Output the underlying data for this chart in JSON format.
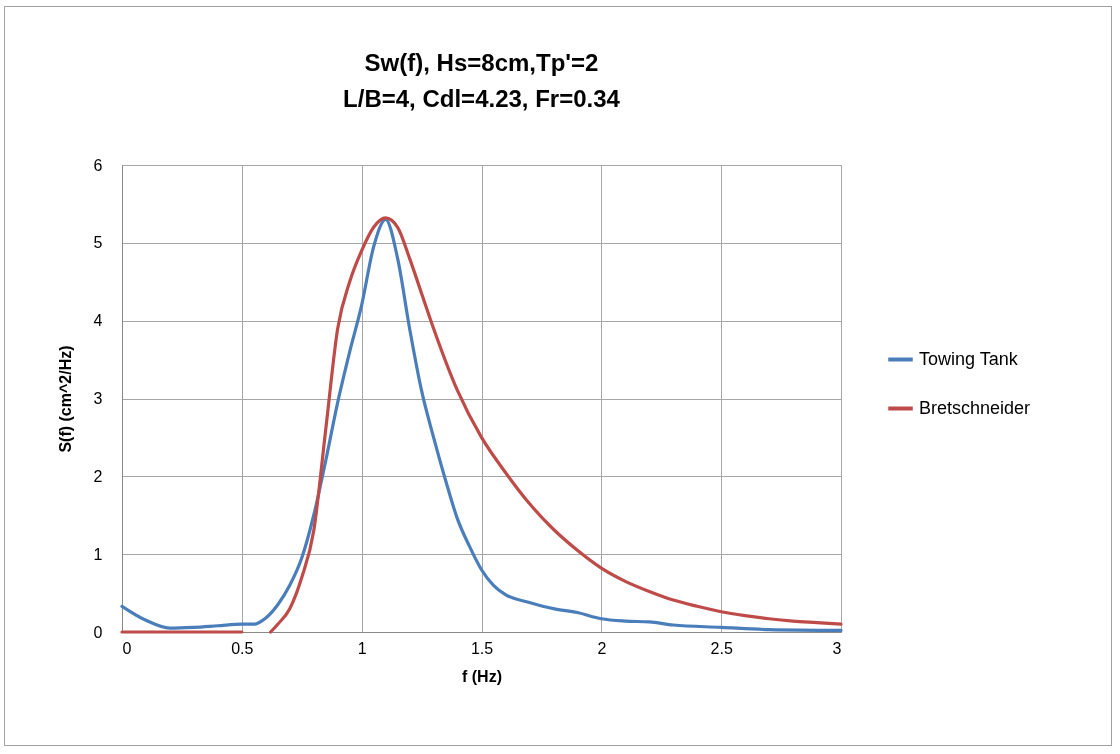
{
  "chart_data": {
    "type": "line",
    "title": [
      "Sw(f), Hs=8cm,Tp'=2",
      "L/B=4, Cdl=4.23, Fr=0.34"
    ],
    "xlabel": "f (Hz)",
    "ylabel": "S(f) (cm^2/Hz)",
    "xlim": [
      0,
      3
    ],
    "xticks": [
      0,
      0.5,
      1,
      1.5,
      2,
      2.5,
      3
    ],
    "ylim": [
      0,
      6
    ],
    "yticks": [
      0,
      1,
      2,
      3,
      4,
      5,
      6
    ],
    "grid": true,
    "legend": "right",
    "line_style": "solid",
    "series": [
      {
        "name": "Towing Tank",
        "color": "#4a7ebb",
        "x": [
          0,
          0.1,
          0.2,
          0.3,
          0.4,
          0.5,
          0.55,
          0.6,
          0.65,
          0.7,
          0.75,
          0.8,
          0.85,
          0.9,
          0.95,
          1.0,
          1.05,
          1.1,
          1.15,
          1.2,
          1.25,
          1.3,
          1.35,
          1.4,
          1.45,
          1.5,
          1.55,
          1.6,
          1.7,
          1.8,
          1.9,
          2.0,
          2.1,
          2.2,
          2.3,
          2.5,
          2.7,
          3.0
        ],
        "values": [
          0.33,
          0.15,
          0.05,
          0.06,
          0.08,
          0.1,
          0.1,
          0.18,
          0.35,
          0.6,
          0.95,
          1.5,
          2.2,
          2.95,
          3.6,
          4.2,
          4.95,
          5.3,
          4.8,
          3.9,
          3.1,
          2.5,
          1.95,
          1.45,
          1.1,
          0.8,
          0.6,
          0.48,
          0.38,
          0.3,
          0.25,
          0.17,
          0.14,
          0.13,
          0.09,
          0.06,
          0.03,
          0.02
        ]
      },
      {
        "name": "Bretschneider",
        "color": "#be4b48",
        "x": [
          0,
          0.25,
          0.5,
          0.56,
          0.62,
          0.65,
          0.7,
          0.75,
          0.8,
          0.85,
          0.9,
          0.95,
          1.0,
          1.05,
          1.1,
          1.15,
          1.2,
          1.25,
          1.3,
          1.4,
          1.5,
          1.6,
          1.7,
          1.8,
          1.9,
          2.0,
          2.1,
          2.2,
          2.3,
          2.4,
          2.5,
          2.6,
          2.7,
          2.8,
          2.9,
          3.0
        ],
        "values": [
          0,
          0,
          0,
          null,
          0,
          0.1,
          0.3,
          0.7,
          1.3,
          2.6,
          3.9,
          4.5,
          4.9,
          5.2,
          5.32,
          5.2,
          4.8,
          4.35,
          3.9,
          3.1,
          2.5,
          2.05,
          1.65,
          1.32,
          1.05,
          0.82,
          0.65,
          0.52,
          0.41,
          0.33,
          0.26,
          0.21,
          0.17,
          0.14,
          0.12,
          0.1
        ]
      }
    ]
  }
}
